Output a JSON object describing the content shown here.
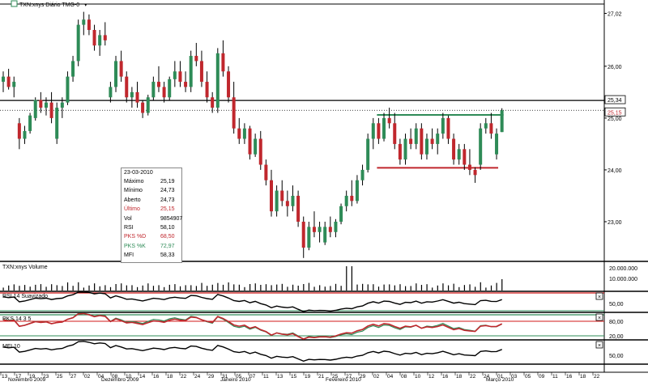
{
  "colors": {
    "up": "#2e8b57",
    "down": "#c0272d",
    "ma": "#d01818",
    "green_line": "#2e8b57",
    "red_line": "#c0272d",
    "axis": "#000000"
  },
  "header": {
    "title": "TXN:xnys Diário TMG-0"
  },
  "info_box": {
    "date": "23-03-2010",
    "rows": [
      {
        "label": "Máximo",
        "value": "25,19",
        "color": "#000000"
      },
      {
        "label": "Mínimo",
        "value": "24,73",
        "color": "#000000"
      },
      {
        "label": "Aberto",
        "value": "24,73",
        "color": "#000000"
      },
      {
        "label": "Último",
        "value": "25,15",
        "color": "#c0272d"
      },
      {
        "label": "Vol",
        "value": "9854907",
        "color": "#000000"
      },
      {
        "label": "RSI",
        "value": "58,10",
        "color": "#000000"
      },
      {
        "label": "PKS %D",
        "value": "68,50",
        "color": "#c0272d"
      },
      {
        "label": "PKS %K",
        "value": "72,97",
        "color": "#2e8b57"
      },
      {
        "label": "MFI",
        "value": "58,33",
        "color": "#000000"
      }
    ]
  },
  "chart_data": {
    "type": "candlestick",
    "price_axis": {
      "ticks": [
        "27,02",
        "26,00",
        "25,00",
        "24,00",
        "23,00"
      ],
      "range": [
        22.25,
        27.2
      ],
      "markers": [
        "25,34",
        "25,15"
      ],
      "horizontal_lines": [
        25.34,
        25.15
      ]
    },
    "x_axis": {
      "day_labels": [
        "13",
        "17",
        "19",
        "23",
        "25",
        "27",
        "02",
        "04",
        "08",
        "10",
        "14",
        "16",
        "18",
        "22",
        "24",
        "29",
        "31",
        "05",
        "07",
        "11",
        "13",
        "15",
        "19",
        "21",
        "25",
        "27",
        "29",
        "02",
        "04",
        "08",
        "10",
        "12",
        "16",
        "18",
        "22",
        "24",
        "01",
        "03",
        "05",
        "09",
        "11",
        "16",
        "18",
        "22"
      ],
      "month_labels": [
        "Novembro 2009",
        "Dezembro 2009",
        "Janeiro 2010",
        "Fevereiro 2010",
        "Março 2010"
      ]
    },
    "candles": [
      {
        "o": 25.7,
        "h": 25.9,
        "l": 25.5,
        "c": 25.8
      },
      {
        "o": 25.8,
        "h": 25.95,
        "l": 25.55,
        "c": 25.6
      },
      {
        "o": 25.6,
        "h": 25.8,
        "l": 25.4,
        "c": 25.7
      },
      {
        "o": 24.9,
        "h": 25.0,
        "l": 24.4,
        "c": 24.6
      },
      {
        "o": 24.6,
        "h": 24.85,
        "l": 24.5,
        "c": 24.75
      },
      {
        "o": 24.75,
        "h": 25.1,
        "l": 24.7,
        "c": 25.05
      },
      {
        "o": 25.0,
        "h": 25.4,
        "l": 24.95,
        "c": 25.35
      },
      {
        "o": 25.35,
        "h": 25.5,
        "l": 25.1,
        "c": 25.2
      },
      {
        "o": 25.2,
        "h": 25.4,
        "l": 25.05,
        "c": 25.3
      },
      {
        "o": 25.3,
        "h": 25.5,
        "l": 24.9,
        "c": 25.0
      },
      {
        "o": 24.6,
        "h": 25.3,
        "l": 24.5,
        "c": 25.2
      },
      {
        "o": 25.2,
        "h": 25.4,
        "l": 25.0,
        "c": 25.3
      },
      {
        "o": 25.3,
        "h": 25.9,
        "l": 25.25,
        "c": 25.8
      },
      {
        "o": 25.8,
        "h": 26.2,
        "l": 25.7,
        "c": 26.1
      },
      {
        "o": 26.1,
        "h": 26.9,
        "l": 26.0,
        "c": 26.8
      },
      {
        "o": 26.8,
        "h": 27.05,
        "l": 26.6,
        "c": 26.9
      },
      {
        "o": 26.9,
        "h": 27.0,
        "l": 26.6,
        "c": 26.7
      },
      {
        "o": 26.7,
        "h": 26.8,
        "l": 26.3,
        "c": 26.4
      },
      {
        "o": 26.4,
        "h": 26.7,
        "l": 26.2,
        "c": 26.6
      },
      {
        "o": 26.6,
        "h": 26.85,
        "l": 26.4,
        "c": 26.5
      },
      {
        "o": 25.4,
        "h": 25.7,
        "l": 25.3,
        "c": 25.6
      },
      {
        "o": 25.6,
        "h": 26.2,
        "l": 25.5,
        "c": 26.1
      },
      {
        "o": 26.1,
        "h": 26.3,
        "l": 25.7,
        "c": 25.8
      },
      {
        "o": 25.8,
        "h": 25.9,
        "l": 25.3,
        "c": 25.4
      },
      {
        "o": 25.4,
        "h": 25.6,
        "l": 25.2,
        "c": 25.5
      },
      {
        "o": 25.5,
        "h": 25.7,
        "l": 25.2,
        "c": 25.3
      },
      {
        "o": 25.3,
        "h": 25.35,
        "l": 25.0,
        "c": 25.1
      },
      {
        "o": 25.1,
        "h": 25.45,
        "l": 25.05,
        "c": 25.4
      },
      {
        "o": 25.4,
        "h": 25.8,
        "l": 25.35,
        "c": 25.7
      },
      {
        "o": 25.7,
        "h": 26.0,
        "l": 25.5,
        "c": 25.6
      },
      {
        "o": 25.6,
        "h": 25.7,
        "l": 25.3,
        "c": 25.4
      },
      {
        "o": 25.4,
        "h": 25.8,
        "l": 25.35,
        "c": 25.75
      },
      {
        "o": 25.75,
        "h": 26.1,
        "l": 25.6,
        "c": 25.9
      },
      {
        "o": 25.9,
        "h": 26.1,
        "l": 25.6,
        "c": 25.7
      },
      {
        "o": 25.7,
        "h": 25.9,
        "l": 25.5,
        "c": 25.6
      },
      {
        "o": 25.6,
        "h": 26.3,
        "l": 25.5,
        "c": 26.2
      },
      {
        "o": 26.2,
        "h": 26.45,
        "l": 26.0,
        "c": 26.1
      },
      {
        "o": 26.1,
        "h": 26.3,
        "l": 25.6,
        "c": 25.7
      },
      {
        "o": 25.7,
        "h": 25.9,
        "l": 25.3,
        "c": 25.4
      },
      {
        "o": 25.4,
        "h": 25.5,
        "l": 25.1,
        "c": 25.2
      },
      {
        "o": 25.2,
        "h": 26.35,
        "l": 25.1,
        "c": 26.25
      },
      {
        "o": 26.25,
        "h": 26.5,
        "l": 25.8,
        "c": 25.9
      },
      {
        "o": 25.9,
        "h": 26.0,
        "l": 25.3,
        "c": 25.4
      },
      {
        "o": 25.4,
        "h": 25.7,
        "l": 24.7,
        "c": 24.8
      },
      {
        "o": 24.8,
        "h": 25.0,
        "l": 24.5,
        "c": 24.6
      },
      {
        "o": 24.6,
        "h": 24.9,
        "l": 24.5,
        "c": 24.8
      },
      {
        "o": 24.8,
        "h": 24.85,
        "l": 24.2,
        "c": 24.3
      },
      {
        "o": 24.3,
        "h": 24.7,
        "l": 24.25,
        "c": 24.6
      },
      {
        "o": 24.6,
        "h": 24.75,
        "l": 24.0,
        "c": 24.1
      },
      {
        "o": 24.1,
        "h": 24.2,
        "l": 23.7,
        "c": 23.8
      },
      {
        "o": 23.8,
        "h": 24.0,
        "l": 23.1,
        "c": 23.2
      },
      {
        "o": 23.2,
        "h": 23.7,
        "l": 23.1,
        "c": 23.6
      },
      {
        "o": 23.6,
        "h": 23.8,
        "l": 23.3,
        "c": 23.4
      },
      {
        "o": 23.4,
        "h": 23.6,
        "l": 23.1,
        "c": 23.3
      },
      {
        "o": 23.3,
        "h": 23.7,
        "l": 23.2,
        "c": 23.5
      },
      {
        "o": 23.5,
        "h": 23.6,
        "l": 22.9,
        "c": 23.0
      },
      {
        "o": 23.0,
        "h": 23.1,
        "l": 22.3,
        "c": 22.5
      },
      {
        "o": 22.5,
        "h": 23.0,
        "l": 22.45,
        "c": 22.9
      },
      {
        "o": 22.9,
        "h": 23.2,
        "l": 22.7,
        "c": 22.8
      },
      {
        "o": 22.8,
        "h": 23.0,
        "l": 22.6,
        "c": 22.9
      },
      {
        "o": 22.6,
        "h": 23.0,
        "l": 22.55,
        "c": 22.9
      },
      {
        "o": 22.9,
        "h": 23.1,
        "l": 22.7,
        "c": 22.8
      },
      {
        "o": 22.8,
        "h": 23.05,
        "l": 22.7,
        "c": 23.0
      },
      {
        "o": 23.0,
        "h": 23.35,
        "l": 22.95,
        "c": 23.3
      },
      {
        "o": 23.3,
        "h": 23.6,
        "l": 23.2,
        "c": 23.5
      },
      {
        "o": 23.5,
        "h": 23.8,
        "l": 23.3,
        "c": 23.4
      },
      {
        "o": 23.4,
        "h": 23.9,
        "l": 23.35,
        "c": 23.8
      },
      {
        "o": 23.8,
        "h": 24.1,
        "l": 23.7,
        "c": 24.0
      },
      {
        "o": 24.0,
        "h": 24.7,
        "l": 23.95,
        "c": 24.6
      },
      {
        "o": 24.6,
        "h": 25.0,
        "l": 24.4,
        "c": 24.9
      },
      {
        "o": 24.9,
        "h": 25.0,
        "l": 24.5,
        "c": 24.6
      },
      {
        "o": 24.6,
        "h": 25.1,
        "l": 24.55,
        "c": 25.0
      },
      {
        "o": 25.0,
        "h": 25.2,
        "l": 24.8,
        "c": 24.9
      },
      {
        "o": 24.9,
        "h": 25.1,
        "l": 24.4,
        "c": 24.5
      },
      {
        "o": 24.5,
        "h": 24.6,
        "l": 24.1,
        "c": 24.2
      },
      {
        "o": 24.2,
        "h": 24.7,
        "l": 24.1,
        "c": 24.6
      },
      {
        "o": 24.6,
        "h": 24.8,
        "l": 24.4,
        "c": 24.5
      },
      {
        "o": 24.5,
        "h": 24.9,
        "l": 24.4,
        "c": 24.8
      },
      {
        "o": 24.8,
        "h": 24.9,
        "l": 24.2,
        "c": 24.3
      },
      {
        "o": 24.3,
        "h": 24.7,
        "l": 24.2,
        "c": 24.6
      },
      {
        "o": 24.6,
        "h": 24.8,
        "l": 24.4,
        "c": 24.5
      },
      {
        "o": 24.5,
        "h": 24.8,
        "l": 24.3,
        "c": 24.7
      },
      {
        "o": 24.7,
        "h": 25.1,
        "l": 24.6,
        "c": 25.0
      },
      {
        "o": 25.0,
        "h": 25.05,
        "l": 24.5,
        "c": 24.6
      },
      {
        "o": 24.6,
        "h": 24.7,
        "l": 24.1,
        "c": 24.2
      },
      {
        "o": 24.2,
        "h": 24.5,
        "l": 24.1,
        "c": 24.4
      },
      {
        "o": 24.4,
        "h": 24.5,
        "l": 24.0,
        "c": 24.1
      },
      {
        "o": 24.1,
        "h": 24.4,
        "l": 23.9,
        "c": 24.0
      },
      {
        "o": 24.0,
        "h": 24.05,
        "l": 23.75,
        "c": 23.9
      },
      {
        "o": 24.1,
        "h": 24.9,
        "l": 24.0,
        "c": 24.8
      },
      {
        "o": 24.8,
        "h": 25.0,
        "l": 24.7,
        "c": 24.9
      },
      {
        "o": 24.9,
        "h": 25.1,
        "l": 24.6,
        "c": 24.7
      },
      {
        "o": 24.3,
        "h": 24.8,
        "l": 24.2,
        "c": 24.7
      },
      {
        "o": 24.73,
        "h": 25.19,
        "l": 24.73,
        "c": 25.15
      }
    ],
    "trend_lines": [
      {
        "from": 70,
        "to": 93,
        "value": 25.06,
        "color": "#2e8b57"
      },
      {
        "from": 70,
        "to": 92,
        "value": 24.04,
        "color": "#c0272d"
      }
    ],
    "panels": [
      {
        "title": "TXN:xnys Volume",
        "labels": [
          "20.000.000",
          "10.000.000"
        ]
      },
      {
        "title": "RSI 14 Suavizado",
        "labels": [
          "50,00"
        ],
        "value": 58.1
      },
      {
        "title": "PKS 14 3 5",
        "labels": [
          "80,00",
          "20,00"
        ],
        "d": 68.5,
        "k": 72.97
      },
      {
        "title": "MFI 10",
        "labels": [
          "50,00"
        ],
        "value": 58.33
      }
    ]
  }
}
